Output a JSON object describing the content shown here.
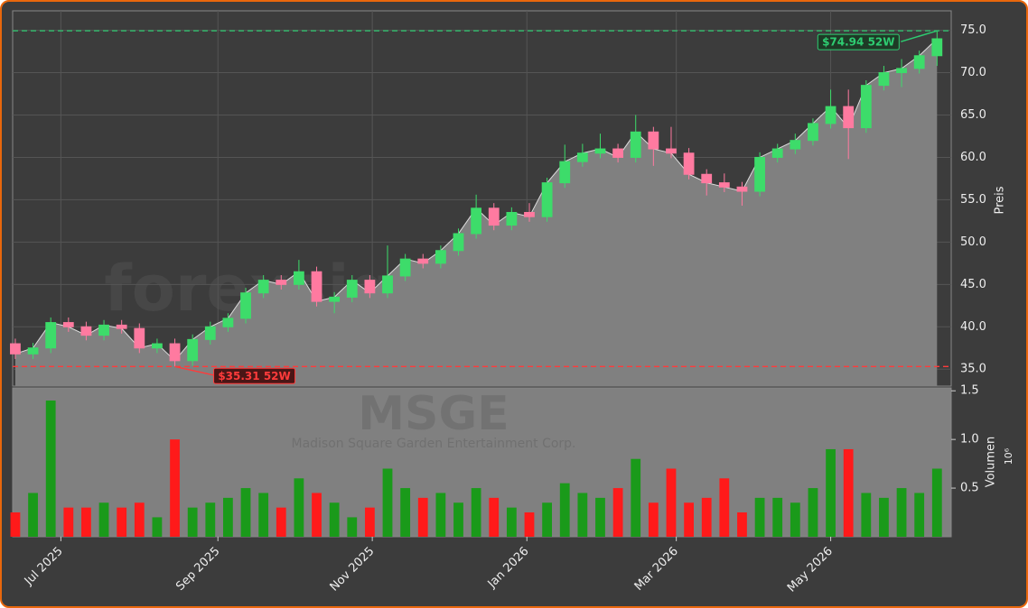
{
  "chart_data": {
    "type": "candlestick",
    "watermark": "forexsignale.trade",
    "ticker": "MSGE",
    "company": "Madison Square Garden Entertainment Corp.",
    "y_label": "Preis",
    "y2_label": "Volumen",
    "y2_exponent": "10⁶",
    "categories": [
      null,
      null,
      null,
      null,
      null,
      null,
      null,
      null,
      null,
      null,
      null,
      null,
      null,
      null,
      null,
      null,
      null,
      null,
      null,
      null,
      null,
      null,
      null,
      null,
      null,
      null,
      null,
      null,
      null,
      null,
      null,
      null,
      null,
      null,
      null,
      null,
      null,
      null,
      null,
      null,
      null,
      null,
      null,
      null,
      null,
      null,
      null,
      null,
      null,
      null,
      null,
      null,
      null
    ],
    "open": [
      38,
      36.8,
      37.5,
      40.5,
      40,
      39,
      40.2,
      39.8,
      37.5,
      38,
      36,
      38.5,
      40,
      41,
      44,
      45.5,
      45,
      46.5,
      43,
      43.5,
      45.5,
      44,
      46,
      48,
      47.5,
      49,
      51,
      54,
      52,
      53.5,
      53,
      57,
      59.5,
      60.5,
      61,
      60,
      63,
      61,
      60.5,
      58,
      57,
      56.5,
      56,
      60,
      61,
      62,
      64,
      66,
      63.5,
      68.5,
      70,
      70.5,
      72
    ],
    "high": [
      38.6,
      38.1,
      41.1,
      41.1,
      40.6,
      40.8,
      40.8,
      40.4,
      38.6,
      38.6,
      39.1,
      40.6,
      41.6,
      44.6,
      46.1,
      46.1,
      47.9,
      47.1,
      44.1,
      46.1,
      46.1,
      49.6,
      48.6,
      48.6,
      49.6,
      51.6,
      55.6,
      54.6,
      54.1,
      54.6,
      57.6,
      61.5,
      61.6,
      62.8,
      61.6,
      65.0,
      63.6,
      63.6,
      61.1,
      58.6,
      58.1,
      57.1,
      60.6,
      61.6,
      62.8,
      64.6,
      68.0,
      68.0,
      69.1,
      70.8,
      71.6,
      72.6,
      74.94
    ],
    "low": [
      36.2,
      36.2,
      36.9,
      39.4,
      38.4,
      38.4,
      39.2,
      36.9,
      36.9,
      35.31,
      35.4,
      37.9,
      39.4,
      40.4,
      43.4,
      44.4,
      44.4,
      42.4,
      41.6,
      42.9,
      43.4,
      43.4,
      45.4,
      46.9,
      46.9,
      48.4,
      50.4,
      51.4,
      51.4,
      52.4,
      52.4,
      56.4,
      58.9,
      59.9,
      59.4,
      59.4,
      59.0,
      59.9,
      57.4,
      55.5,
      55.9,
      54.3,
      55.4,
      59.4,
      60.4,
      61.4,
      63.4,
      59.8,
      62.9,
      67.9,
      68.3,
      69.9,
      70.8
    ],
    "close": [
      36.8,
      37.5,
      40.5,
      40,
      39,
      40.2,
      39.8,
      37.5,
      38,
      36,
      38.5,
      40,
      41,
      44,
      45.5,
      45,
      46.5,
      43,
      43.5,
      45.5,
      44,
      46,
      48,
      47.5,
      49,
      51,
      54,
      52,
      53.5,
      53,
      57,
      59.5,
      60.5,
      61,
      60,
      63,
      61,
      60.5,
      58,
      57,
      56.5,
      56,
      60,
      61,
      62,
      64,
      66,
      63.5,
      68.5,
      70,
      70.5,
      72,
      74
    ],
    "volume": [
      0.25,
      0.45,
      1.4,
      0.3,
      0.3,
      0.35,
      0.3,
      0.35,
      0.2,
      1.0,
      0.3,
      0.35,
      0.4,
      0.5,
      0.45,
      0.3,
      0.6,
      0.45,
      0.35,
      0.2,
      0.3,
      0.7,
      0.5,
      0.4,
      0.45,
      0.35,
      0.5,
      0.4,
      0.3,
      0.25,
      0.35,
      0.55,
      0.45,
      0.4,
      0.5,
      0.8,
      0.35,
      0.7,
      0.35,
      0.4,
      0.6,
      0.25,
      0.4,
      0.4,
      0.35,
      0.5,
      0.9,
      0.9,
      0.45,
      0.4,
      0.5,
      0.45,
      0.7
    ],
    "xlim": [
      -0.15,
      52.8
    ],
    "xticks": [
      {
        "value": 2.57,
        "label": "Jul 2025"
      },
      {
        "value": 11.43,
        "label": "Sep 2025"
      },
      {
        "value": 20.14,
        "label": "Nov 2025"
      },
      {
        "value": 28.86,
        "label": "Jan 2026"
      },
      {
        "value": 37.29,
        "label": "Mar 2026"
      },
      {
        "value": 46,
        "label": "May 2026"
      }
    ],
    "ylim": [
      33,
      77.3
    ],
    "yticks": [
      {
        "value": 35,
        "label": "35.0"
      },
      {
        "value": 40,
        "label": "40.0"
      },
      {
        "value": 45,
        "label": "45.0"
      },
      {
        "value": 50,
        "label": "50.0"
      },
      {
        "value": 55,
        "label": "55.0"
      },
      {
        "value": 60,
        "label": "60.0"
      },
      {
        "value": 65,
        "label": "65.0"
      },
      {
        "value": 70,
        "label": "70.0"
      },
      {
        "value": 75,
        "label": "75.0"
      }
    ],
    "y2lim": [
      0,
      1.53
    ],
    "y2ticks": [
      0.5,
      {
        "value": 1.0,
        "label": "1.0"
      },
      1.5
    ],
    "high_line": {
      "value": 74.94,
      "label": "$74.94 52W",
      "color": "#2ecc71"
    },
    "low_line": {
      "value": 35.31,
      "label": "$35.31 52W",
      "color": "#ff3b3b"
    },
    "up_color": "#3ddc6a",
    "down_color": "#ff7aa0",
    "vol_up_color": "#1a9a1a",
    "vol_down_color": "#ff1a1a",
    "area_color": "#808080",
    "grid": true
  }
}
